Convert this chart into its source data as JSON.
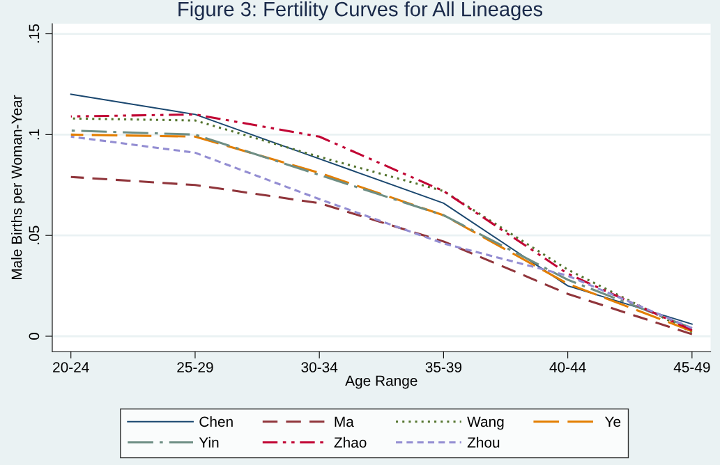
{
  "chart_data": {
    "type": "line",
    "title": "Figure 3: Fertility Curves for All Lineages",
    "xlabel": "Age Range",
    "ylabel": "Male Births per Woman-Year",
    "categories": [
      "20-24",
      "25-29",
      "30-34",
      "35-39",
      "40-44",
      "45-49"
    ],
    "series": [
      {
        "name": "Chen",
        "color": "#1a476f",
        "line_style": "solid",
        "values": [
          0.12,
          0.11,
          0.088,
          0.066,
          0.025,
          0.006
        ]
      },
      {
        "name": "Ma",
        "color": "#90353b",
        "line_style": "dashed",
        "values": [
          0.079,
          0.075,
          0.066,
          0.047,
          0.021,
          0.001
        ]
      },
      {
        "name": "Wang",
        "color": "#55752f",
        "line_style": "dotted",
        "values": [
          0.108,
          0.107,
          0.089,
          0.072,
          0.033,
          0.002
        ]
      },
      {
        "name": "Ye",
        "color": "#e37e00",
        "line_style": "longdash",
        "values": [
          0.1,
          0.099,
          0.081,
          0.06,
          0.026,
          0.0025
        ]
      },
      {
        "name": "Yin",
        "color": "#6e8e84",
        "line_style": "dashdot",
        "values": [
          0.102,
          0.1,
          0.08,
          0.06,
          0.028,
          0.004
        ]
      },
      {
        "name": "Zhao",
        "color": "#c10534",
        "line_style": "dashdotdot",
        "values": [
          0.109,
          0.11,
          0.099,
          0.072,
          0.031,
          0.003
        ]
      },
      {
        "name": "Zhou",
        "color": "#938dd2",
        "line_style": "shortdash",
        "values": [
          0.099,
          0.091,
          0.068,
          0.046,
          0.03,
          0.004
        ]
      }
    ],
    "ylim": [
      -0.0076,
      0.155
    ],
    "yticks": [
      0,
      {
        "value": 0.05,
        "label": ".05"
      },
      {
        "value": 0.1,
        "label": ".1"
      },
      {
        "value": 0.15,
        "label": ".15"
      }
    ],
    "grid": "y",
    "legend": "bottom",
    "marker": "none"
  }
}
